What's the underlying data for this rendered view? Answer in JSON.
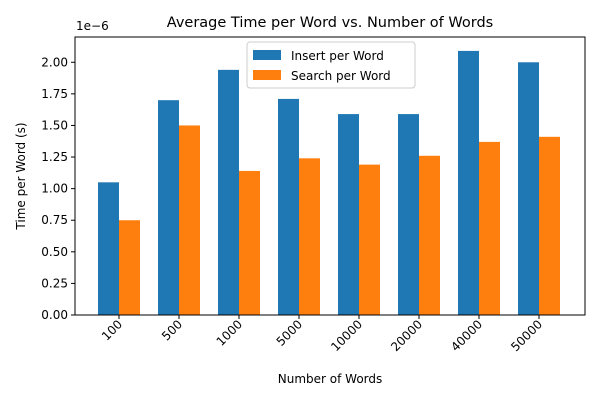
{
  "chart_data": {
    "type": "bar",
    "title": "Average Time per Word vs. Number of Words",
    "xlabel": "Number of Words",
    "ylabel": "Time per Word (s)",
    "y_scale_label": "1e−6",
    "categories": [
      "100",
      "500",
      "1000",
      "5000",
      "10000",
      "20000",
      "40000",
      "50000"
    ],
    "series": [
      {
        "name": "Insert per Word",
        "color": "#1f77b4",
        "values": [
          1.05,
          1.7,
          1.94,
          1.71,
          1.59,
          1.59,
          2.09,
          2.0
        ]
      },
      {
        "name": "Search per Word",
        "color": "#ff7f0e",
        "values": [
          0.75,
          1.5,
          1.14,
          1.24,
          1.19,
          1.26,
          1.37,
          1.41
        ]
      }
    ],
    "ylim": [
      0,
      2.2
    ],
    "yticks": [
      "0.00",
      "0.25",
      "0.50",
      "0.75",
      "1.00",
      "1.25",
      "1.50",
      "1.75",
      "2.00"
    ],
    "grid": false,
    "legend_position": "top-center"
  }
}
